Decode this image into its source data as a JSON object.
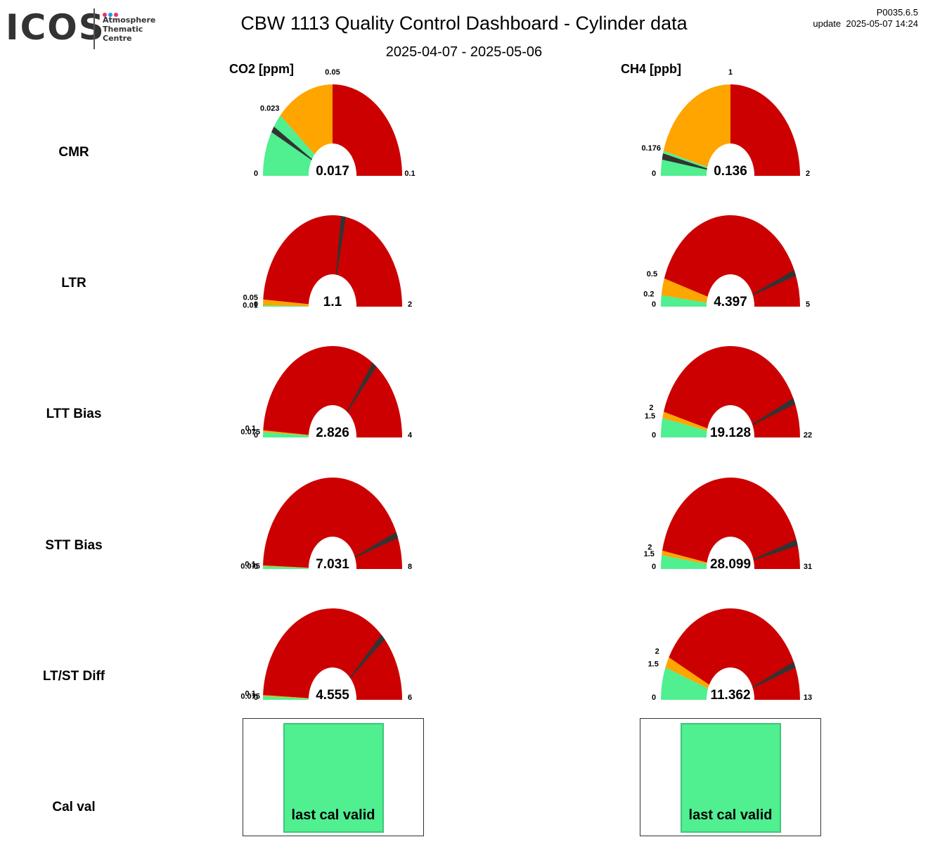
{
  "logo": {
    "text": "ICOS",
    "sub_line1": "Atmosphere",
    "sub_line2": "Thematic",
    "sub_line3": "Centre",
    "dot_colors": [
      "#e8336b",
      "#1a9fe0",
      "#e8336b"
    ]
  },
  "header": {
    "title": "CBW 1113 Quality Control Dashboard - Cylinder data",
    "subtitle": "2025-04-07 - 2025-05-06",
    "version": "P0035.6.5",
    "update": "update  2025-05-07 14:24"
  },
  "columns": [
    "CO2 [ppm]",
    "CH4 [ppb]"
  ],
  "rows": [
    "CMR",
    "LTR",
    "LTT Bias",
    "STT Bias",
    "LT/ST Diff",
    "Cal val"
  ],
  "colors": {
    "green": "#50ef90",
    "orange": "#ffa500",
    "red": "#cc0000",
    "needle": "#333333"
  },
  "chart_data": [
    {
      "type": "gauge",
      "row": "CMR",
      "column": "CO2 [ppm]",
      "min": 0,
      "max": 0.1,
      "thresholds": [
        0.023,
        0.05
      ],
      "value": 0.017,
      "labels": {
        "min": "0",
        "t1": "0.023",
        "t2": "0.05",
        "max": "0.1",
        "value": "0.017"
      }
    },
    {
      "type": "gauge",
      "row": "CMR",
      "column": "CH4 [ppb]",
      "min": 0,
      "max": 2,
      "thresholds": [
        0.176,
        1
      ],
      "value": 0.136,
      "labels": {
        "min": "0",
        "t1": "0.176",
        "t2": "1",
        "max": "2",
        "value": "0.136"
      }
    },
    {
      "type": "gauge",
      "row": "LTR",
      "column": "CO2 [ppm]",
      "min": 0,
      "max": 2,
      "thresholds": [
        0.01,
        0.05
      ],
      "value": 1.1,
      "labels": {
        "min": "0",
        "t1": "0.01",
        "t2": "0.05",
        "max": "2",
        "value": "1.1"
      }
    },
    {
      "type": "gauge",
      "row": "LTR",
      "column": "CH4 [ppb]",
      "min": 0,
      "max": 5,
      "thresholds": [
        0.2,
        0.5
      ],
      "value": 4.397,
      "labels": {
        "min": "0",
        "t1": "0.2",
        "t2": "0.5",
        "max": "5",
        "value": "4.397"
      }
    },
    {
      "type": "gauge",
      "row": "LTT Bias",
      "column": "CO2 [ppm]",
      "min": 0,
      "max": 4,
      "thresholds": [
        0.075,
        0.1
      ],
      "value": 2.826,
      "labels": {
        "min": "0",
        "t1": "0.075",
        "t2": "0.1",
        "max": "4",
        "value": "2.826"
      }
    },
    {
      "type": "gauge",
      "row": "LTT Bias",
      "column": "CH4 [ppb]",
      "min": 0,
      "max": 22,
      "thresholds": [
        1.5,
        2
      ],
      "value": 19.128,
      "labels": {
        "min": "0",
        "t1": "1.5",
        "t2": "2",
        "max": "22",
        "value": "19.128"
      }
    },
    {
      "type": "gauge",
      "row": "STT Bias",
      "column": "CO2 [ppm]",
      "min": 0,
      "max": 8,
      "thresholds": [
        0.075,
        0.1
      ],
      "value": 7.031,
      "labels": {
        "min": "0",
        "t1": "0.075",
        "t2": "0.1",
        "max": "8",
        "value": "7.031"
      }
    },
    {
      "type": "gauge",
      "row": "STT Bias",
      "column": "CH4 [ppb]",
      "min": 0,
      "max": 31,
      "thresholds": [
        1.5,
        2
      ],
      "value": 28.099,
      "labels": {
        "min": "0",
        "t1": "1.5",
        "t2": "2",
        "max": "31",
        "value": "28.099"
      }
    },
    {
      "type": "gauge",
      "row": "LT/ST Diff",
      "column": "CO2 [ppm]",
      "min": 0,
      "max": 6,
      "thresholds": [
        0.075,
        0.1
      ],
      "value": 4.555,
      "labels": {
        "min": "0",
        "t1": "0.075",
        "t2": "0.1",
        "max": "6",
        "value": "4.555"
      }
    },
    {
      "type": "gauge",
      "row": "LT/ST Diff",
      "column": "CH4 [ppb]",
      "min": 0,
      "max": 13,
      "thresholds": [
        1.5,
        2
      ],
      "value": 11.362,
      "labels": {
        "min": "0",
        "t1": "1.5",
        "t2": "2",
        "max": "13",
        "value": "11.362"
      }
    }
  ],
  "calval": [
    {
      "column": "CO2 [ppm]",
      "label": "last cal valid",
      "status": "valid"
    },
    {
      "column": "CH4 [ppb]",
      "label": "last cal valid",
      "status": "valid"
    }
  ]
}
